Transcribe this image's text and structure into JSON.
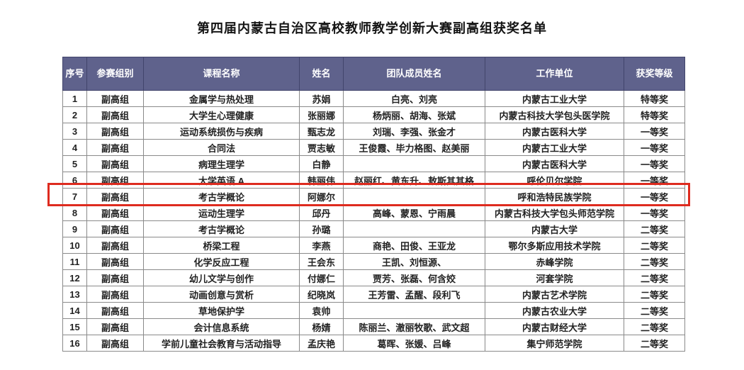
{
  "page": {
    "title": "第四届内蒙古自治区高校教师教学创新大赛副高组获奖名单"
  },
  "colors": {
    "header_bg": "#5f628c",
    "header_text": "#ffffff",
    "grid_border": "#8a8a8a",
    "highlight_border": "#de2b1f"
  },
  "table": {
    "headers": [
      "序号",
      "参赛组别",
      "课程名称",
      "姓名",
      "团队成员姓名",
      "工作单位",
      "获奖等级"
    ],
    "highlighted_row_no": "7",
    "rows": [
      {
        "no": "1",
        "group": "副高组",
        "course": "金属学与热处理",
        "name": "苏娟",
        "team": "白亮、刘亮",
        "unit": "内蒙古工业大学",
        "award": "特等奖"
      },
      {
        "no": "2",
        "group": "副高组",
        "course": "大学生心理健康",
        "name": "张丽娜",
        "team": "杨炳丽、胡海、张斌",
        "unit": "内蒙古科技大学包头医学院",
        "award": "特等奖"
      },
      {
        "no": "3",
        "group": "副高组",
        "course": "运动系统损伤与疾病",
        "name": "甄志龙",
        "team": "刘瑞、李强、张金才",
        "unit": "内蒙古医科大学",
        "award": "一等奖"
      },
      {
        "no": "4",
        "group": "副高组",
        "course": "合同法",
        "name": "贾志敏",
        "team": "王俊霞、毕力格图、赵美丽",
        "unit": "内蒙古工业大学",
        "award": "一等奖"
      },
      {
        "no": "5",
        "group": "副高组",
        "course": "病理生理学",
        "name": "白静",
        "team": "",
        "unit": "内蒙古医科大学",
        "award": "一等奖"
      },
      {
        "no": "6",
        "group": "副高组",
        "course": "大学英语 A",
        "name": "韩丽伟",
        "team": "赵丽红、黄东升、敖斯其其格",
        "unit": "呼伦贝尔学院",
        "award": "一等奖"
      },
      {
        "no": "7",
        "group": "副高组",
        "course": "考古学概论",
        "name": "阿娜尔",
        "team": "",
        "unit": "呼和浩特民族学院",
        "award": "一等奖"
      },
      {
        "no": "8",
        "group": "副高组",
        "course": "运动生理学",
        "name": "邱丹",
        "team": "高峰、蒙恩、宁雨晨",
        "unit": "内蒙古科技大学包头师范学院",
        "award": "一等奖"
      },
      {
        "no": "9",
        "group": "副高组",
        "course": "考古学概论",
        "name": "孙璐",
        "team": "",
        "unit": "内蒙古大学",
        "award": "二等奖"
      },
      {
        "no": "10",
        "group": "副高组",
        "course": "桥梁工程",
        "name": "李燕",
        "team": "商艳、田俊、王亚龙",
        "unit": "鄂尔多斯应用技术学院",
        "award": "二等奖"
      },
      {
        "no": "11",
        "group": "副高组",
        "course": "化学反应工程",
        "name": "王会东",
        "team": "王凯、刘恒源、",
        "unit": "赤峰学院",
        "award": "二等奖"
      },
      {
        "no": "12",
        "group": "副高组",
        "course": "幼儿文学与创作",
        "name": "付娜仁",
        "team": "贾芳、张磊、何含姣",
        "unit": "河套学院",
        "award": "二等奖"
      },
      {
        "no": "13",
        "group": "副高组",
        "course": "动画创意与赏析",
        "name": "纪晓岚",
        "team": "王芳雷、孟醒、段利飞",
        "unit": "内蒙古艺术学院",
        "award": "二等奖"
      },
      {
        "no": "14",
        "group": "副高组",
        "course": "草地保护学",
        "name": "袁帅",
        "team": "",
        "unit": "内蒙古农业大学",
        "award": "二等奖"
      },
      {
        "no": "15",
        "group": "副高组",
        "course": "会计信息系统",
        "name": "杨婧",
        "team": "陈丽兰、澈丽牧歌、武文超",
        "unit": "内蒙古财经大学",
        "award": "二等奖"
      },
      {
        "no": "16",
        "group": "副高组",
        "course": "学前儿童社会教育与活动指导",
        "name": "孟庆艳",
        "team": "葛晖、张媛、吕峰",
        "unit": "集宁师范学院",
        "award": "二等奖"
      }
    ]
  }
}
